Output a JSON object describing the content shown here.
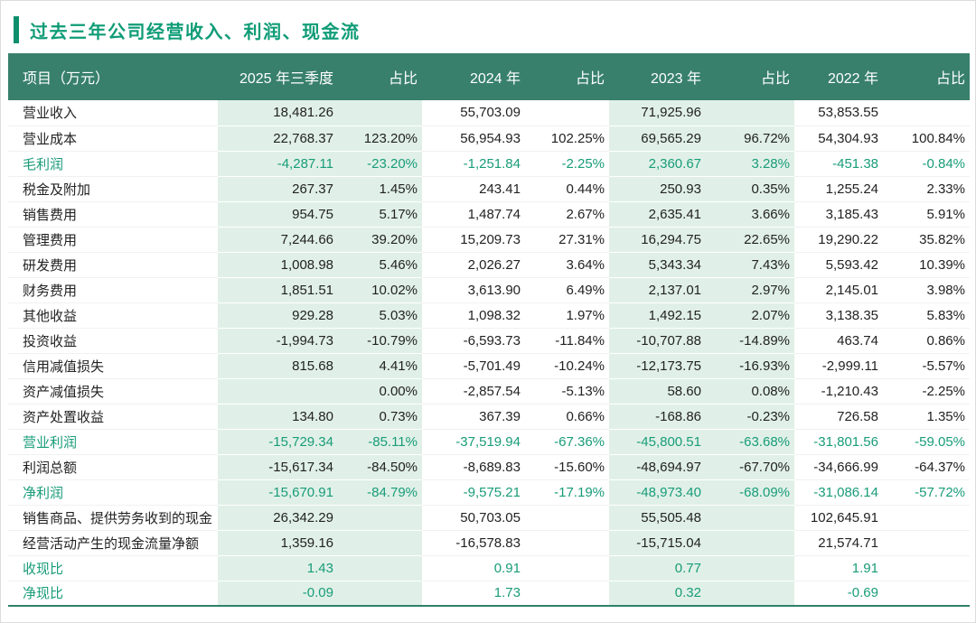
{
  "page": {
    "title": "过去三年公司经营收入、利润、现金流"
  },
  "colors": {
    "accent_green": "#0f9c77",
    "header_bg": "#38806c",
    "band_bg": "#e0f0e8",
    "highlight_text": "#189c78",
    "bottom_rule": "#2e8068"
  },
  "chart_data": {
    "type": "table",
    "title": "过去三年公司经营收入、利润、现金流",
    "unit_label": "项目（万元）",
    "columns": [
      "2025 年三季度",
      "占比",
      "2024 年",
      "占比",
      "2023 年",
      "占比",
      "2022 年",
      "占比"
    ],
    "highlight_band_columns": [
      "2025 年三季度",
      "2023 年"
    ],
    "rows": [
      {
        "label": "营业收入",
        "highlight": false,
        "values": [
          "18,481.26",
          "",
          "55,703.09",
          "",
          "71,925.96",
          "",
          "53,853.55",
          ""
        ]
      },
      {
        "label": "营业成本",
        "highlight": false,
        "values": [
          "22,768.37",
          "123.20%",
          "56,954.93",
          "102.25%",
          "69,565.29",
          "96.72%",
          "54,304.93",
          "100.84%"
        ]
      },
      {
        "label": "毛利润",
        "highlight": true,
        "values": [
          "-4,287.11",
          "-23.20%",
          "-1,251.84",
          "-2.25%",
          "2,360.67",
          "3.28%",
          "-451.38",
          "-0.84%"
        ]
      },
      {
        "label": "税金及附加",
        "highlight": false,
        "values": [
          "267.37",
          "1.45%",
          "243.41",
          "0.44%",
          "250.93",
          "0.35%",
          "1,255.24",
          "2.33%"
        ]
      },
      {
        "label": "销售费用",
        "highlight": false,
        "values": [
          "954.75",
          "5.17%",
          "1,487.74",
          "2.67%",
          "2,635.41",
          "3.66%",
          "3,185.43",
          "5.91%"
        ]
      },
      {
        "label": "管理费用",
        "highlight": false,
        "values": [
          "7,244.66",
          "39.20%",
          "15,209.73",
          "27.31%",
          "16,294.75",
          "22.65%",
          "19,290.22",
          "35.82%"
        ]
      },
      {
        "label": "研发费用",
        "highlight": false,
        "values": [
          "1,008.98",
          "5.46%",
          "2,026.27",
          "3.64%",
          "5,343.34",
          "7.43%",
          "5,593.42",
          "10.39%"
        ]
      },
      {
        "label": "财务费用",
        "highlight": false,
        "values": [
          "1,851.51",
          "10.02%",
          "3,613.90",
          "6.49%",
          "2,137.01",
          "2.97%",
          "2,145.01",
          "3.98%"
        ]
      },
      {
        "label": "其他收益",
        "highlight": false,
        "values": [
          "929.28",
          "5.03%",
          "1,098.32",
          "1.97%",
          "1,492.15",
          "2.07%",
          "3,138.35",
          "5.83%"
        ]
      },
      {
        "label": "投资收益",
        "highlight": false,
        "values": [
          "-1,994.73",
          "-10.79%",
          "-6,593.73",
          "-11.84%",
          "-10,707.88",
          "-14.89%",
          "463.74",
          "0.86%"
        ]
      },
      {
        "label": "信用减值损失",
        "highlight": false,
        "values": [
          "815.68",
          "4.41%",
          "-5,701.49",
          "-10.24%",
          "-12,173.75",
          "-16.93%",
          "-2,999.11",
          "-5.57%"
        ]
      },
      {
        "label": "资产减值损失",
        "highlight": false,
        "values": [
          "",
          "0.00%",
          "-2,857.54",
          "-5.13%",
          "58.60",
          "0.08%",
          "-1,210.43",
          "-2.25%"
        ]
      },
      {
        "label": "资产处置收益",
        "highlight": false,
        "values": [
          "134.80",
          "0.73%",
          "367.39",
          "0.66%",
          "-168.86",
          "-0.23%",
          "726.58",
          "1.35%"
        ]
      },
      {
        "label": "营业利润",
        "highlight": true,
        "values": [
          "-15,729.34",
          "-85.11%",
          "-37,519.94",
          "-67.36%",
          "-45,800.51",
          "-63.68%",
          "-31,801.56",
          "-59.05%"
        ]
      },
      {
        "label": "利润总额",
        "highlight": false,
        "values": [
          "-15,617.34",
          "-84.50%",
          "-8,689.83",
          "-15.60%",
          "-48,694.97",
          "-67.70%",
          "-34,666.99",
          "-64.37%"
        ]
      },
      {
        "label": "净利润",
        "highlight": true,
        "values": [
          "-15,670.91",
          "-84.79%",
          "-9,575.21",
          "-17.19%",
          "-48,973.40",
          "-68.09%",
          "-31,086.14",
          "-57.72%"
        ]
      },
      {
        "label": "销售商品、提供劳务收到的现金",
        "highlight": false,
        "values": [
          "26,342.29",
          "",
          "50,703.05",
          "",
          "55,505.48",
          "",
          "102,645.91",
          ""
        ]
      },
      {
        "label": "经营活动产生的现金流量净额",
        "highlight": false,
        "values": [
          "1,359.16",
          "",
          "-16,578.83",
          "",
          "-15,715.04",
          "",
          "21,574.71",
          ""
        ]
      },
      {
        "label": "收现比",
        "highlight": true,
        "values": [
          "1.43",
          "",
          "0.91",
          "",
          "0.77",
          "",
          "1.91",
          ""
        ]
      },
      {
        "label": "净现比",
        "highlight": true,
        "values": [
          "-0.09",
          "",
          "1.73",
          "",
          "0.32",
          "",
          "-0.69",
          ""
        ]
      }
    ]
  }
}
